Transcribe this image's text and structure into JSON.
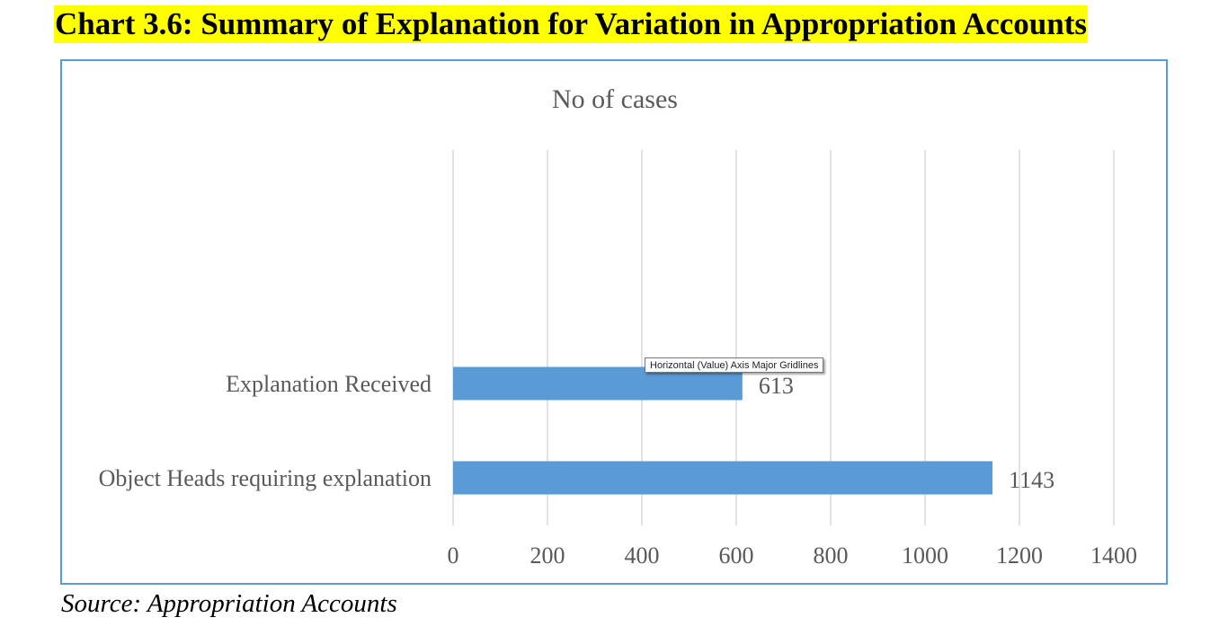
{
  "heading": "Chart 3.6: Summary of Explanation for Variation in Appropriation Accounts",
  "source": "Source: Appropriation Accounts",
  "tooltip": "Horizontal (Value) Axis Major Gridlines",
  "colors": {
    "bar": "#5b9bd5",
    "frame": "#5b9bd5",
    "gridline": "#d9d9d9",
    "text": "#595959",
    "highlight": "#ffff00"
  },
  "chart_data": {
    "type": "bar",
    "orientation": "horizontal",
    "title": "No of cases",
    "categories": [
      "Explanation Received",
      "Object Heads requiring explanation"
    ],
    "values": [
      613,
      1143
    ],
    "data_labels": [
      "613",
      "1143"
    ],
    "xlim": [
      0,
      1400
    ],
    "x_ticks": [
      0,
      200,
      400,
      600,
      800,
      1000,
      1200,
      1400
    ],
    "grid": true,
    "legend": "none"
  }
}
